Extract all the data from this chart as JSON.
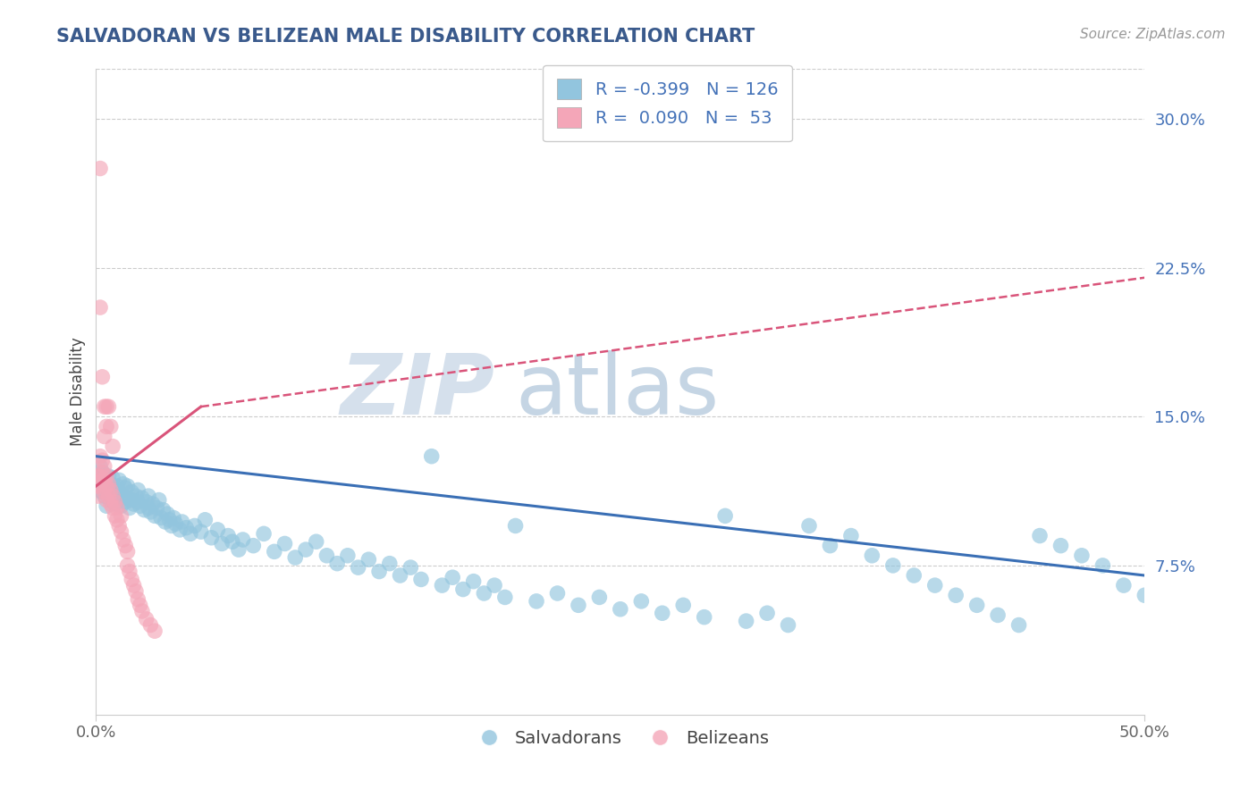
{
  "title": "SALVADORAN VS BELIZEAN MALE DISABILITY CORRELATION CHART",
  "source_text": "Source: ZipAtlas.com",
  "ylabel": "Male Disability",
  "legend_label_1": "Salvadorans",
  "legend_label_2": "Belizeans",
  "R1": -0.399,
  "N1": 126,
  "R2": 0.09,
  "N2": 53,
  "xlim": [
    0.0,
    0.5
  ],
  "ylim": [
    0.0,
    0.325
  ],
  "ytick_values": [
    0.075,
    0.15,
    0.225,
    0.3
  ],
  "ytick_labels": [
    "7.5%",
    "15.0%",
    "22.5%",
    "30.0%"
  ],
  "color_blue": "#92c5de",
  "color_pink": "#f4a6b8",
  "title_color": "#3a5a8c",
  "source_color": "#999999",
  "watermark_color": "#d0dce8",
  "axis_color": "#cccccc",
  "grid_color": "#cccccc",
  "blue_line": {
    "x0": 0.0,
    "x1": 0.5,
    "y0": 0.13,
    "y1": 0.07
  },
  "pink_solid_line": {
    "x0": 0.0,
    "x1": 0.05,
    "y0": 0.115,
    "y1": 0.155
  },
  "pink_dashed_line": {
    "x0": 0.05,
    "x1": 0.5,
    "y0": 0.155,
    "y1": 0.22
  },
  "blue_scatter_x": [
    0.001,
    0.002,
    0.002,
    0.003,
    0.003,
    0.004,
    0.004,
    0.005,
    0.005,
    0.006,
    0.006,
    0.007,
    0.007,
    0.008,
    0.008,
    0.009,
    0.009,
    0.01,
    0.01,
    0.011,
    0.011,
    0.012,
    0.013,
    0.013,
    0.014,
    0.014,
    0.015,
    0.015,
    0.016,
    0.017,
    0.017,
    0.018,
    0.019,
    0.02,
    0.02,
    0.021,
    0.022,
    0.023,
    0.024,
    0.025,
    0.025,
    0.026,
    0.027,
    0.028,
    0.029,
    0.03,
    0.031,
    0.032,
    0.033,
    0.034,
    0.035,
    0.036,
    0.037,
    0.038,
    0.04,
    0.041,
    0.043,
    0.045,
    0.047,
    0.05,
    0.052,
    0.055,
    0.058,
    0.06,
    0.063,
    0.065,
    0.068,
    0.07,
    0.075,
    0.08,
    0.085,
    0.09,
    0.095,
    0.1,
    0.105,
    0.11,
    0.115,
    0.12,
    0.125,
    0.13,
    0.135,
    0.14,
    0.145,
    0.15,
    0.155,
    0.16,
    0.165,
    0.17,
    0.175,
    0.18,
    0.185,
    0.19,
    0.195,
    0.2,
    0.21,
    0.22,
    0.23,
    0.24,
    0.25,
    0.26,
    0.27,
    0.28,
    0.29,
    0.3,
    0.31,
    0.32,
    0.33,
    0.34,
    0.35,
    0.36,
    0.37,
    0.38,
    0.39,
    0.4,
    0.41,
    0.42,
    0.43,
    0.44,
    0.45,
    0.46,
    0.47,
    0.48,
    0.49,
    0.5
  ],
  "blue_scatter_y": [
    0.12,
    0.118,
    0.125,
    0.112,
    0.122,
    0.115,
    0.11,
    0.118,
    0.105,
    0.114,
    0.12,
    0.108,
    0.116,
    0.11,
    0.119,
    0.113,
    0.106,
    0.115,
    0.108,
    0.112,
    0.118,
    0.105,
    0.11,
    0.116,
    0.107,
    0.114,
    0.109,
    0.115,
    0.104,
    0.108,
    0.112,
    0.106,
    0.11,
    0.107,
    0.113,
    0.105,
    0.109,
    0.103,
    0.107,
    0.104,
    0.11,
    0.102,
    0.106,
    0.1,
    0.104,
    0.108,
    0.099,
    0.103,
    0.097,
    0.101,
    0.098,
    0.095,
    0.099,
    0.096,
    0.093,
    0.097,
    0.094,
    0.091,
    0.095,
    0.092,
    0.098,
    0.089,
    0.093,
    0.086,
    0.09,
    0.087,
    0.083,
    0.088,
    0.085,
    0.091,
    0.082,
    0.086,
    0.079,
    0.083,
    0.087,
    0.08,
    0.076,
    0.08,
    0.074,
    0.078,
    0.072,
    0.076,
    0.07,
    0.074,
    0.068,
    0.13,
    0.065,
    0.069,
    0.063,
    0.067,
    0.061,
    0.065,
    0.059,
    0.095,
    0.057,
    0.061,
    0.055,
    0.059,
    0.053,
    0.057,
    0.051,
    0.055,
    0.049,
    0.1,
    0.047,
    0.051,
    0.045,
    0.095,
    0.085,
    0.09,
    0.08,
    0.075,
    0.07,
    0.065,
    0.06,
    0.055,
    0.05,
    0.045,
    0.09,
    0.085,
    0.08,
    0.075,
    0.065,
    0.06
  ],
  "pink_scatter_x": [
    0.001,
    0.001,
    0.001,
    0.002,
    0.002,
    0.002,
    0.003,
    0.003,
    0.003,
    0.004,
    0.004,
    0.004,
    0.005,
    0.005,
    0.005,
    0.006,
    0.006,
    0.007,
    0.007,
    0.008,
    0.008,
    0.009,
    0.009,
    0.01,
    0.01,
    0.011,
    0.012,
    0.012,
    0.013,
    0.014,
    0.015,
    0.015,
    0.016,
    0.017,
    0.018,
    0.019,
    0.02,
    0.021,
    0.022,
    0.024,
    0.026,
    0.028,
    0.002,
    0.003,
    0.004,
    0.004,
    0.002,
    0.005,
    0.005,
    0.006,
    0.007,
    0.008
  ],
  "pink_scatter_y": [
    0.12,
    0.115,
    0.11,
    0.13,
    0.12,
    0.115,
    0.128,
    0.122,
    0.118,
    0.125,
    0.118,
    0.112,
    0.12,
    0.115,
    0.108,
    0.116,
    0.11,
    0.113,
    0.106,
    0.11,
    0.104,
    0.107,
    0.1,
    0.104,
    0.098,
    0.095,
    0.1,
    0.092,
    0.088,
    0.085,
    0.082,
    0.075,
    0.072,
    0.068,
    0.065,
    0.062,
    0.058,
    0.055,
    0.052,
    0.048,
    0.045,
    0.042,
    0.205,
    0.17,
    0.155,
    0.14,
    0.275,
    0.155,
    0.145,
    0.155,
    0.145,
    0.135
  ]
}
